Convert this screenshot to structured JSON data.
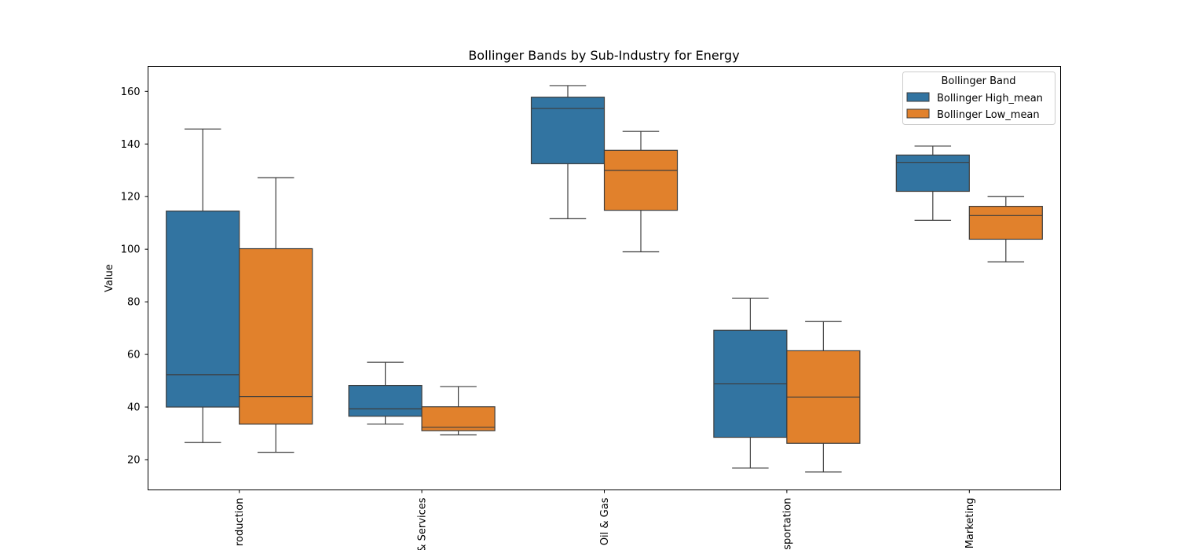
{
  "chart_data": {
    "type": "box",
    "title": "Bollinger Bands by Sub-Industry for Energy",
    "xlabel": "",
    "ylabel": "Value",
    "ylim": [
      8.5,
      169.5
    ],
    "yticks": [
      20,
      40,
      60,
      80,
      100,
      120,
      140,
      160
    ],
    "grid": false,
    "legend": {
      "title": "Bollinger Band",
      "placement": "top-right"
    },
    "categories": [
      "roduction",
      "& Services",
      "Oil & Gas",
      "sportation",
      "Marketing"
    ],
    "series": [
      {
        "name": "Bollinger High_mean",
        "color": "#3274a1",
        "boxes": [
          {
            "min": 26.5,
            "q1": 40.0,
            "median": 52.3,
            "q3": 114.5,
            "max": 145.7
          },
          {
            "min": 33.5,
            "q1": 36.5,
            "median": 39.3,
            "q3": 48.2,
            "max": 57.0
          },
          {
            "min": 111.6,
            "q1": 132.5,
            "median": 153.5,
            "q3": 157.8,
            "max": 162.2
          },
          {
            "min": 16.8,
            "q1": 28.5,
            "median": 48.8,
            "q3": 69.2,
            "max": 81.4
          },
          {
            "min": 111.0,
            "q1": 122.0,
            "median": 133.0,
            "q3": 135.8,
            "max": 139.2
          }
        ]
      },
      {
        "name": "Bollinger Low_mean",
        "color": "#e1812c",
        "boxes": [
          {
            "min": 22.8,
            "q1": 33.5,
            "median": 44.0,
            "q3": 100.2,
            "max": 127.2
          },
          {
            "min": 29.4,
            "q1": 31.0,
            "median": 32.3,
            "q3": 40.1,
            "max": 47.8
          },
          {
            "min": 99.0,
            "q1": 114.8,
            "median": 130.0,
            "q3": 137.6,
            "max": 144.8
          },
          {
            "min": 15.3,
            "q1": 26.2,
            "median": 43.8,
            "q3": 61.4,
            "max": 72.5
          },
          {
            "min": 95.2,
            "q1": 103.8,
            "median": 112.8,
            "q3": 116.3,
            "max": 120.0
          }
        ]
      }
    ]
  }
}
